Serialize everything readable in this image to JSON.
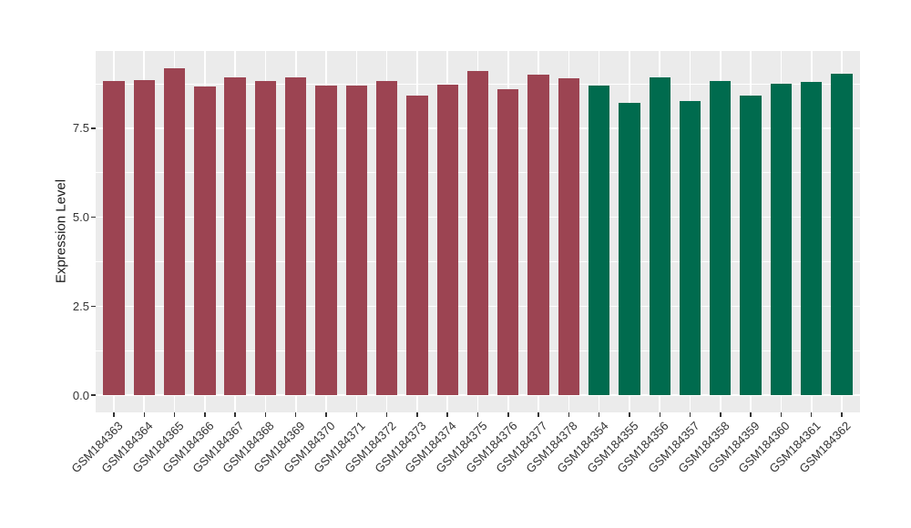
{
  "chart_data": {
    "type": "bar",
    "title": "",
    "xlabel": "",
    "ylabel": "Expression Level",
    "legend_position": "none",
    "grid": true,
    "panel_background": "#EBEBEB",
    "grid_color": "#FFFFFF",
    "axis_text_color": "#333333",
    "tick_mark_color": "#333333",
    "ylim": [
      -0.48,
      9.67
    ],
    "ytick_values": [
      0,
      2.5,
      5,
      7.5
    ],
    "ytick_labels": [
      "0.0",
      "2.5",
      "5.0",
      "7.5"
    ],
    "yminor_values": [
      1.25,
      3.75,
      6.25,
      8.75
    ],
    "categories": [
      "GSM184363",
      "GSM184364",
      "GSM184365",
      "GSM184366",
      "GSM184367",
      "GSM184368",
      "GSM184369",
      "GSM184370",
      "GSM184371",
      "GSM184372",
      "GSM184373",
      "GSM184374",
      "GSM184375",
      "GSM184376",
      "GSM184377",
      "GSM184378",
      "GSM184354",
      "GSM184355",
      "GSM184356",
      "GSM184357",
      "GSM184358",
      "GSM184359",
      "GSM184360",
      "GSM184361",
      "GSM184362"
    ],
    "values": [
      8.82,
      8.84,
      9.19,
      8.68,
      8.94,
      8.82,
      8.93,
      8.7,
      8.7,
      8.83,
      8.41,
      8.72,
      9.11,
      8.6,
      9.0,
      8.91,
      8.7,
      8.21,
      8.94,
      8.26,
      8.83,
      8.43,
      8.76,
      8.81,
      9.04
    ],
    "bar_colors": [
      "#9C4452",
      "#9C4452",
      "#9C4452",
      "#9C4452",
      "#9C4452",
      "#9C4452",
      "#9C4452",
      "#9C4452",
      "#9C4452",
      "#9C4452",
      "#9C4452",
      "#9C4452",
      "#9C4452",
      "#9C4452",
      "#9C4452",
      "#9C4452",
      "#006B4E",
      "#006B4E",
      "#006B4E",
      "#006B4E",
      "#006B4E",
      "#006B4E",
      "#006B4E",
      "#006B4E",
      "#006B4E"
    ],
    "color_groups": [
      {
        "color": "#9C4452",
        "first_category": "GSM184363",
        "last_category": "GSM184378",
        "count": 16
      },
      {
        "color": "#006B4E",
        "first_category": "GSM184354",
        "last_category": "GSM184362",
        "count": 9
      }
    ]
  }
}
